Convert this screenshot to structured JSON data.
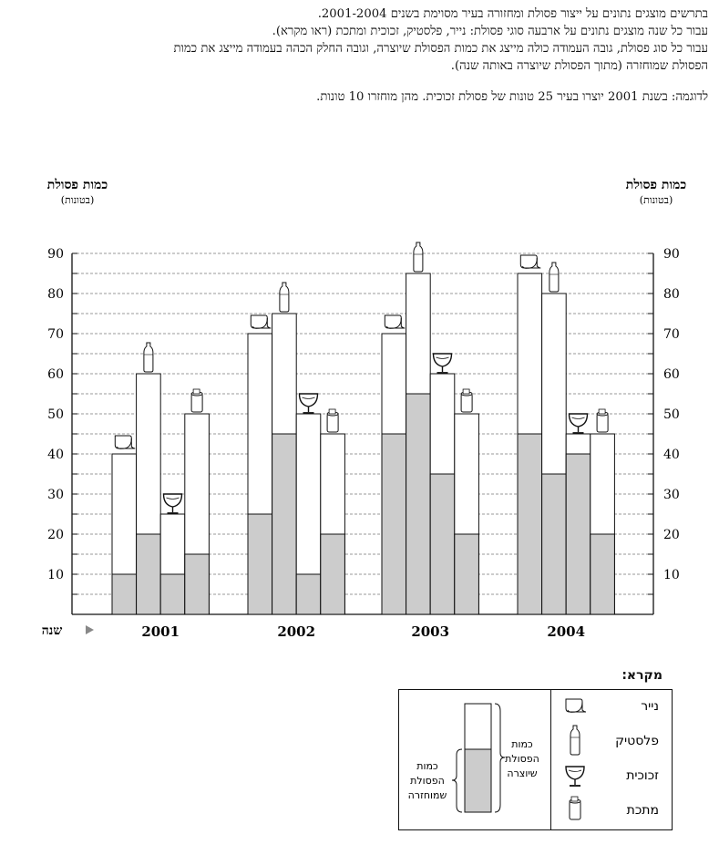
{
  "intro": {
    "line1": "בתרשים מוצגים נתונים על ייצור פסולת ומחזורה בעיר מסוימת בשנים 2001-2004.",
    "line2": "עבור כל שנה מוצגים נתונים על ארבעה סוגי פסולת: נייר, פלסטיק, זכוכית ומתכת (ראו מקרא).",
    "line3": "עבור כל סוג פסולת, גובה העמודה כולה מייצג את כמות הפסולת שיוצרה, וגובה החלק הכהה בעמודה מייצג את כמות",
    "line4": "הפסולת שמוחזרה (מתוך הפסולת שיוצרה באותה שנה).",
    "example": "לדוגמה: בשנת 2001 יוצרו בעיר 25 טונות של פסולת זכוכית. מהן מוחזרו 10 טונות."
  },
  "axis": {
    "title": "כמות פסולת",
    "unit": "(בטונות)",
    "year_label": "שנה"
  },
  "legend": {
    "title": "מקרא:",
    "items": [
      {
        "label": "נייר",
        "icon": "paper-icon"
      },
      {
        "label": "פלסטיק",
        "icon": "plastic-bottle-icon"
      },
      {
        "label": "זכוכית",
        "icon": "glass-icon"
      },
      {
        "label": "מתכת",
        "icon": "metal-can-icon"
      }
    ],
    "produced_label": [
      "כמות",
      "הפסולת",
      "שיוצרה"
    ],
    "recycled_label": [
      "כמות",
      "הפסולת",
      "שמוחזרה"
    ]
  },
  "chart_data": {
    "type": "bar",
    "categories": [
      "2001",
      "2002",
      "2003",
      "2004"
    ],
    "series_types": [
      "נייר",
      "פלסטיק",
      "זכוכית",
      "מתכת"
    ],
    "series_icons": [
      "paper-icon",
      "plastic-bottle-icon",
      "glass-icon",
      "metal-can-icon"
    ],
    "produced": [
      [
        40,
        60,
        25,
        50
      ],
      [
        70,
        75,
        50,
        45
      ],
      [
        70,
        85,
        60,
        50
      ],
      [
        85,
        80,
        45,
        45
      ]
    ],
    "recycled": [
      [
        10,
        20,
        10,
        15
      ],
      [
        25,
        45,
        10,
        20
      ],
      [
        45,
        55,
        35,
        20
      ],
      [
        45,
        35,
        40,
        20
      ]
    ],
    "ylim": [
      0,
      90
    ],
    "yticks": [
      10,
      20,
      30,
      40,
      50,
      60,
      70,
      80,
      90
    ],
    "grid": true,
    "colors": {
      "recycled": "#cccccc",
      "produced": "#ffffff",
      "stroke": "#111111"
    }
  }
}
